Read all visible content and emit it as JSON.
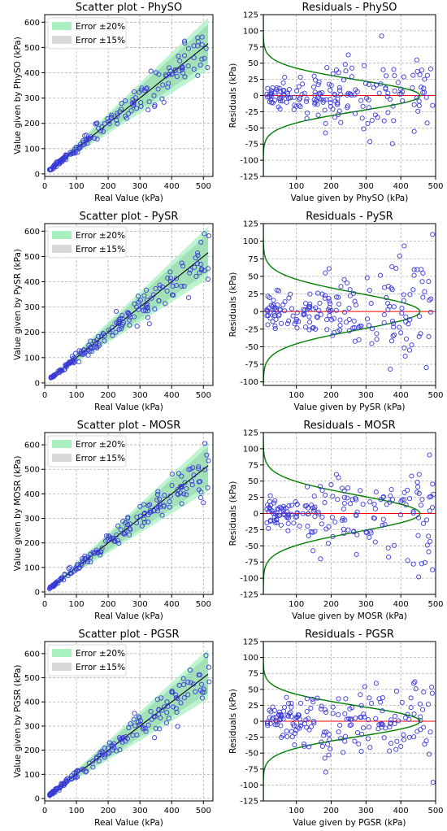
{
  "chart_data": [
    {
      "id": "scatter-physo",
      "type": "scatter",
      "title": "Scatter plot - PhySO",
      "xlabel": "Real Value (kPa)",
      "ylabel": "Value given by PhySO (kPa)",
      "xlim": [
        0,
        530
      ],
      "ylim": [
        -10,
        630
      ],
      "xticks": [
        0,
        100,
        200,
        300,
        400,
        500
      ],
      "yticks": [
        0,
        100,
        200,
        300,
        400,
        500,
        600
      ],
      "legend": {
        "placement": "top-left",
        "entries": [
          "Error ±20%",
          "Error ±15%"
        ]
      },
      "bands": [
        0.2,
        0.15
      ],
      "reference_line": [
        20,
        515
      ],
      "grid": true,
      "seed": 11
    },
    {
      "id": "residuals-physo",
      "type": "scatter",
      "title": "Residuals - PhySO",
      "xlabel": "Value given by PhySO (kPa)",
      "ylabel": "Residuals (kPa)",
      "xlim": [
        5,
        500
      ],
      "ylim": [
        -125,
        125
      ],
      "xticks": [
        100,
        200,
        300,
        400,
        500
      ],
      "yticks": [
        -125,
        -100,
        -75,
        -50,
        -25,
        0,
        25,
        50,
        75,
        100,
        125
      ],
      "zero_line": true,
      "distribution_peak": 455,
      "spread": 24,
      "grid": true,
      "seed": 21
    },
    {
      "id": "scatter-pysr",
      "type": "scatter",
      "title": "Scatter plot - PySR",
      "xlabel": "Real Value (kPa)",
      "ylabel": "Value given by PySR (kPa)",
      "xlim": [
        0,
        530
      ],
      "ylim": [
        -10,
        630
      ],
      "xticks": [
        0,
        100,
        200,
        300,
        400,
        500
      ],
      "yticks": [
        0,
        100,
        200,
        300,
        400,
        500,
        600
      ],
      "legend": {
        "placement": "top-left",
        "entries": [
          "Error ±20%",
          "Error ±15%"
        ]
      },
      "bands": [
        0.2,
        0.15
      ],
      "reference_line": [
        20,
        515
      ],
      "grid": true,
      "seed": 12
    },
    {
      "id": "residuals-pysr",
      "type": "scatter",
      "title": "Residuals - PySR",
      "xlabel": "Value given by PySR (kPa)",
      "ylabel": "Residuals (kPa)",
      "xlim": [
        5,
        500
      ],
      "ylim": [
        -105,
        125
      ],
      "xticks": [
        100,
        200,
        300,
        400,
        500
      ],
      "yticks": [
        -100,
        -75,
        -50,
        -25,
        0,
        25,
        50,
        75,
        100,
        125
      ],
      "zero_line": true,
      "distribution_peak": 455,
      "spread": 26,
      "grid": true,
      "seed": 22
    },
    {
      "id": "scatter-mosr",
      "type": "scatter",
      "title": "Scatter plot - MOSR",
      "xlabel": "Real Value (kPa)",
      "ylabel": "Value given by MOSR (kPa)",
      "xlim": [
        0,
        530
      ],
      "ylim": [
        -10,
        650
      ],
      "xticks": [
        0,
        100,
        200,
        300,
        400,
        500
      ],
      "yticks": [
        0,
        100,
        200,
        300,
        400,
        500,
        600
      ],
      "legend": {
        "placement": "top-left",
        "entries": [
          "Error ±20%",
          "Error ±15%"
        ]
      },
      "bands": [
        0.2,
        0.15
      ],
      "reference_line": [
        20,
        515
      ],
      "grid": true,
      "seed": 13
    },
    {
      "id": "residuals-mosr",
      "type": "scatter",
      "title": "Residuals - MOSR",
      "xlabel": "Value given by MOSR (kPa)",
      "ylabel": "Residuals (kPa)",
      "xlim": [
        5,
        500
      ],
      "ylim": [
        -125,
        125
      ],
      "xticks": [
        100,
        200,
        300,
        400,
        500
      ],
      "yticks": [
        -125,
        -100,
        -75,
        -50,
        -25,
        0,
        25,
        50,
        75,
        100,
        125
      ],
      "zero_line": true,
      "distribution_peak": 455,
      "spread": 28,
      "grid": true,
      "seed": 23
    },
    {
      "id": "scatter-pgsr",
      "type": "scatter",
      "title": "Scatter plot - PGSR",
      "xlabel": "Real Value (kPa)",
      "ylabel": "Value given by PGSR (kPa)",
      "xlim": [
        0,
        530
      ],
      "ylim": [
        -10,
        650
      ],
      "xticks": [
        0,
        100,
        200,
        300,
        400,
        500
      ],
      "yticks": [
        0,
        100,
        200,
        300,
        400,
        500,
        600
      ],
      "legend": {
        "placement": "top-left",
        "entries": [
          "Error ±20%",
          "Error ±15%"
        ]
      },
      "bands": [
        0.2,
        0.15
      ],
      "reference_line": [
        20,
        515
      ],
      "grid": true,
      "seed": 14
    },
    {
      "id": "residuals-pgsr",
      "type": "scatter",
      "title": "Residuals - PGSR",
      "xlabel": "Value given by PGSR (kPa)",
      "ylabel": "Residuals (kPa)",
      "xlim": [
        5,
        500
      ],
      "ylim": [
        -125,
        125
      ],
      "xticks": [
        100,
        200,
        300,
        400,
        500
      ],
      "yticks": [
        -125,
        -100,
        -75,
        -50,
        -25,
        0,
        25,
        50,
        75,
        100,
        125
      ],
      "zero_line": true,
      "distribution_peak": 455,
      "spread": 24,
      "grid": true,
      "seed": 24
    }
  ],
  "colors": {
    "band20": "#a8f0c0",
    "band15": "#c8c8c8",
    "band_overlap": "#8fd4a6",
    "marker": "#3a3ad8",
    "reference_line": "#000000",
    "zero_line": "#ff0000",
    "distribution_curve": "#008000",
    "grid": "#b0b0b0"
  }
}
